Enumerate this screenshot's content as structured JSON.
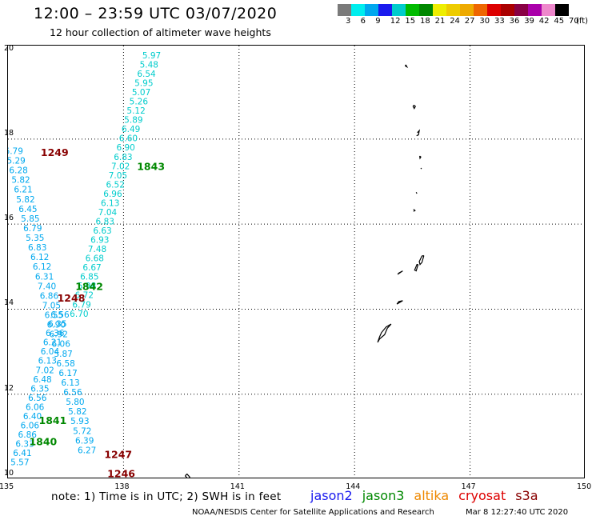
{
  "header": {
    "title": "12:00 – 23:59 UTC 03/07/2020",
    "subtitle": "12 hour collection of altimeter wave heights"
  },
  "colorbar": {
    "unit": "(ft)",
    "labels": [
      "3",
      "6",
      "9",
      "12",
      "15",
      "18",
      "21",
      "24",
      "27",
      "30",
      "33",
      "36",
      "39",
      "42",
      "45",
      "70"
    ],
    "colors": [
      "#7a7a7a",
      "#00eeee",
      "#00a8ee",
      "#1a1aee",
      "#00cccc",
      "#00bb00",
      "#008800",
      "#eeee00",
      "#eecc00",
      "#eeaa00",
      "#ee6600",
      "#dd0000",
      "#aa0000",
      "#880044",
      "#aa00aa",
      "#ee88cc",
      "#000000"
    ]
  },
  "axes": {
    "lon_ticks": [
      "135",
      "138",
      "141",
      "144",
      "147",
      "150"
    ],
    "lat_ticks": [
      "10",
      "12",
      "14",
      "16",
      "18",
      "20"
    ]
  },
  "tracks": [
    {
      "name": "jason3 1843",
      "color": "#00cccc",
      "label_color": "#008800",
      "time": "1843",
      "lat_start": 19.9,
      "lat_step": -0.217,
      "lon_start": 138.73,
      "lon_per_lat": 0.31,
      "values": [
        "5.97",
        "5.48",
        "6.54",
        "5.95",
        "5.07",
        "5.26",
        "5.12",
        "5.89",
        "6.49",
        "6.60",
        "6.90",
        "6.83",
        "7.02",
        "7.05",
        "6.52",
        "6.96",
        "6.13",
        "7.04",
        "6.83",
        "6.63",
        "6.93",
        "7.48",
        "6.68",
        "6.67",
        "6.85",
        "5.98",
        "6.72",
        "6.79",
        "6.70"
      ]
    },
    {
      "name": "cryosat 1249",
      "color": "#00a8ee",
      "label_color": "#880000",
      "time": "1249",
      "lat_start": 17.65,
      "lat_step": -0.227,
      "lon_start": 135.15,
      "lon_per_lat": -0.27,
      "values": [
        "6.79",
        "5.29",
        "6.28",
        "5.82",
        "6.21",
        "5.82",
        "6.45",
        "5.85",
        "6.79",
        "5.35",
        "6.83",
        "6.12",
        "6.12",
        "6.31",
        "7.40",
        "6.86",
        "7.05",
        "6.55",
        "6.90",
        "6.92",
        "6.06",
        "5.87",
        "6.58",
        "6.17",
        "6.13",
        "6.56",
        "5.80",
        "5.82",
        "5.93",
        "5.72",
        "6.39",
        "6.27"
      ]
    },
    {
      "name": "jason3 1841",
      "color": "#00a8ee",
      "label_color": "#008800",
      "time": "1841",
      "lat_start": 13.8,
      "lat_step": -0.217,
      "lon_start": 136.35,
      "lon_per_lat": 0.3,
      "values": [
        "6.56",
        "6.35",
        "6.36",
        "6.21",
        "6.04",
        "6.13",
        "7.02",
        "6.48",
        "6.35",
        "6.56",
        "6.06",
        "6.40",
        "6.06",
        "6.86",
        "6.33",
        "6.41",
        "5.57"
      ]
    }
  ],
  "annotations": [
    {
      "text": "1249",
      "color": "#880000",
      "lon": 135.85,
      "lat": 17.6
    },
    {
      "text": "1843",
      "color": "#008800",
      "lon": 138.35,
      "lat": 17.27
    },
    {
      "text": "1842",
      "color": "#008800",
      "lon": 136.75,
      "lat": 14.45
    },
    {
      "text": "1248",
      "color": "#880000",
      "lon": 136.28,
      "lat": 14.18
    },
    {
      "text": "1841",
      "color": "#008800",
      "lon": 135.8,
      "lat": 11.3
    },
    {
      "text": "1840",
      "color": "#008800",
      "lon": 135.55,
      "lat": 10.8
    },
    {
      "text": "1247",
      "color": "#880000",
      "lon": 137.5,
      "lat": 10.5
    },
    {
      "text": "1246",
      "color": "#880000",
      "lon": 137.58,
      "lat": 10.05
    }
  ],
  "footer": {
    "note": "note: 1) Time is in UTC; 2) SWH is in feet",
    "sats": [
      {
        "name": "jason2",
        "color": "#1a1aee"
      },
      {
        "name": "jason3",
        "color": "#008800"
      },
      {
        "name": "altika",
        "color": "#ee8800"
      },
      {
        "name": "cryosat",
        "color": "#dd0000"
      },
      {
        "name": "s3a",
        "color": "#880000"
      }
    ],
    "credit": "NOAA/NESDIS Center for Satellite Applications and Research",
    "timestamp": "Mar 8 12:27:40 UTC 2020"
  }
}
